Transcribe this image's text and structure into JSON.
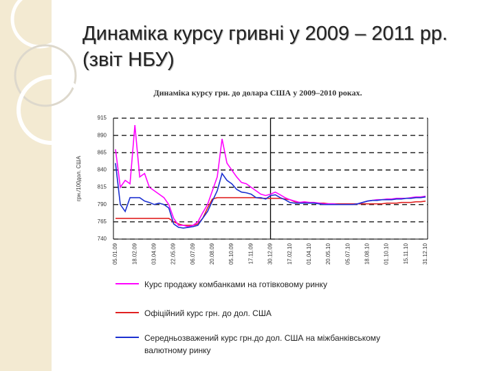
{
  "slide": {
    "title": "Динаміка курсу гривні у 2009 – 2011 рр. (звіт НБУ)"
  },
  "chart_data": {
    "type": "line",
    "title": "Динаміка курсу грн. до долара США у 2009–2010 роках.",
    "y_label": "грн./100дол. США",
    "categories": [
      "05.01.09",
      null,
      null,
      null,
      "18.02.09",
      null,
      null,
      null,
      "03.04.09",
      null,
      null,
      null,
      "22.05.09",
      null,
      null,
      null,
      "06.07.09",
      null,
      null,
      null,
      "20.08.09",
      null,
      null,
      null,
      "05.10.09",
      null,
      null,
      null,
      "17.11.09",
      null,
      null,
      null,
      "30.12.09",
      null,
      null,
      null,
      "17.02.10",
      null,
      null,
      null,
      "01.04.10",
      null,
      null,
      null,
      "20.05.10",
      null,
      null,
      null,
      "05.07.10",
      null,
      null,
      null,
      "18.08.10",
      null,
      null,
      null,
      "01.10.10",
      null,
      null,
      null,
      "15.11.10",
      null,
      null,
      null,
      "31.12.10"
    ],
    "series": [
      {
        "name": "Курс продажу комбанками на готівковому ринку",
        "color": "#ff00ff",
        "values": [
          870,
          815,
          825,
          820,
          905,
          830,
          835,
          815,
          810,
          805,
          800,
          790,
          770,
          760,
          760,
          758,
          760,
          765,
          778,
          790,
          810,
          830,
          885,
          850,
          840,
          830,
          822,
          820,
          815,
          810,
          805,
          803,
          805,
          808,
          804,
          800,
          797,
          795,
          793,
          794,
          793,
          793,
          792,
          791,
          791,
          791,
          790,
          790,
          790,
          790,
          791,
          793,
          795,
          796,
          797,
          797,
          798,
          798,
          799,
          799,
          799,
          800,
          801,
          801,
          802
        ]
      },
      {
        "name": "Офіційний курс грн. до дол. США",
        "color": "#e02020",
        "values": [
          770,
          770,
          770,
          770,
          770,
          770,
          770,
          770,
          770,
          770,
          770,
          770,
          765,
          762,
          760,
          760,
          760,
          762,
          770,
          785,
          798,
          800,
          800,
          800,
          800,
          800,
          800,
          800,
          800,
          800,
          799,
          799,
          799,
          799,
          799,
          798,
          797,
          794,
          793,
          793,
          793,
          792,
          792,
          792,
          791,
          791,
          791,
          791,
          791,
          791,
          791,
          791,
          791,
          791,
          791,
          791,
          792,
          792,
          792,
          793,
          793,
          793,
          794,
          794,
          795
        ]
      },
      {
        "name": "Середньозважений курс грн.до  дол. США на міжбанківському валютному ринку",
        "color": "#1a2fd0",
        "values": [
          850,
          790,
          780,
          800,
          800,
          800,
          795,
          793,
          790,
          792,
          790,
          785,
          762,
          757,
          756,
          757,
          758,
          760,
          770,
          780,
          795,
          810,
          835,
          825,
          820,
          812,
          808,
          807,
          805,
          800,
          800,
          798,
          803,
          804,
          800,
          797,
          793,
          792,
          792,
          792,
          792,
          792,
          791,
          790,
          790,
          790,
          790,
          790,
          790,
          790,
          791,
          793,
          795,
          796,
          796,
          797,
          797,
          797,
          798,
          798,
          799,
          799,
          800,
          800,
          801
        ]
      }
    ],
    "ylim": [
      740,
      915
    ],
    "yticks": [
      740,
      765,
      790,
      815,
      840,
      865,
      890,
      915
    ],
    "grid": true
  }
}
